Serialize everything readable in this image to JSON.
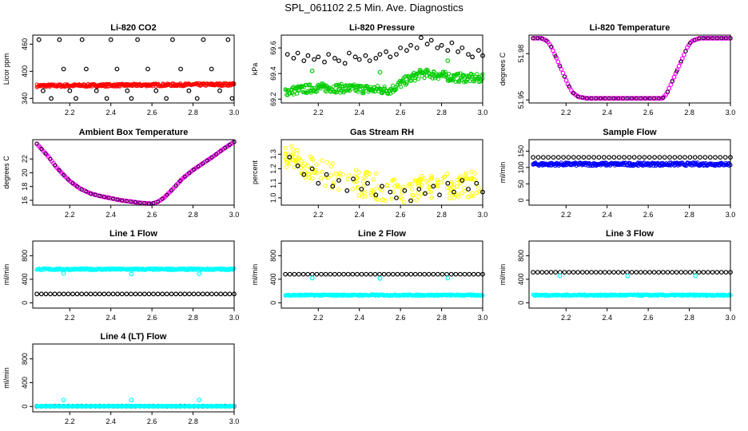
{
  "figure_title": "SPL_061102  2.5 Min. Ave. Diagnostics",
  "colors": {
    "black": "#000000",
    "red": "#ff0000",
    "green": "#00cc00",
    "magenta": "#ff00ff",
    "yellow": "#ffff00",
    "blue": "#0000ff",
    "cyan": "#00ffff"
  },
  "chart_data": [
    {
      "id": "co2",
      "type": "scatter",
      "title": "Li-820 CO2",
      "ylabel": "Licor ppm",
      "xlim": [
        2.02,
        3.0
      ],
      "ylim": [
        330,
        480
      ],
      "xticks": [
        2.2,
        2.4,
        2.6,
        2.8,
        3.0
      ],
      "yticks": [
        340,
        400,
        460
      ],
      "series": [
        {
          "kind": "band",
          "color": "#ff0000",
          "x": [
            2.04,
            3.0
          ],
          "y": [
            368,
            371
          ],
          "spread": 3
        },
        {
          "kind": "points",
          "color": "#000000",
          "x": [
            2.05,
            2.07,
            2.11,
            2.15,
            2.17,
            2.2,
            2.23,
            2.26,
            2.28,
            2.33,
            2.38,
            2.4,
            2.43,
            2.48,
            2.5,
            2.53,
            2.58,
            2.62,
            2.67,
            2.7,
            2.74,
            2.78,
            2.82,
            2.85,
            2.89,
            2.93,
            2.97,
            2.99
          ],
          "y": [
            470,
            357,
            340,
            470,
            405,
            357,
            340,
            470,
            405,
            357,
            340,
            470,
            405,
            357,
            340,
            470,
            405,
            357,
            340,
            470,
            405,
            357,
            340,
            470,
            405,
            357,
            470,
            340
          ]
        }
      ]
    },
    {
      "id": "pressure",
      "type": "scatter",
      "title": "Li-820 Pressure",
      "ylabel": "kPa",
      "xlim": [
        2.02,
        3.0
      ],
      "ylim": [
        69.17,
        69.7
      ],
      "xticks": [
        2.2,
        2.4,
        2.6,
        2.8,
        3.0
      ],
      "yticks": [
        69.2,
        69.4,
        69.6
      ],
      "series": [
        {
          "kind": "band",
          "color": "#00cc00",
          "x": [
            2.04,
            2.2,
            2.4,
            2.55,
            2.62,
            2.7,
            2.78,
            2.85,
            3.0
          ],
          "y": [
            69.26,
            69.29,
            69.28,
            69.27,
            69.34,
            69.4,
            69.39,
            69.37,
            69.36
          ],
          "spread": 0.035
        },
        {
          "kind": "points",
          "color": "#000000",
          "x": [
            2.05,
            2.08,
            2.1,
            2.13,
            2.15,
            2.18,
            2.2,
            2.23,
            2.25,
            2.28,
            2.3,
            2.33,
            2.35,
            2.38,
            2.4,
            2.43,
            2.45,
            2.48,
            2.5,
            2.53,
            2.55,
            2.58,
            2.6,
            2.63,
            2.65,
            2.68,
            2.7,
            2.73,
            2.75,
            2.78,
            2.8,
            2.83,
            2.85,
            2.88,
            2.9,
            2.93,
            2.95,
            2.98,
            3.0
          ],
          "y": [
            69.55,
            69.52,
            69.56,
            69.5,
            69.54,
            69.51,
            69.53,
            69.49,
            69.55,
            69.52,
            69.5,
            69.48,
            69.56,
            69.53,
            69.51,
            69.54,
            69.5,
            69.52,
            69.55,
            69.57,
            69.53,
            69.55,
            69.6,
            69.58,
            69.62,
            69.6,
            69.68,
            69.63,
            69.66,
            69.6,
            69.62,
            69.58,
            69.64,
            69.57,
            69.6,
            69.55,
            69.53,
            69.58,
            69.54
          ]
        },
        {
          "kind": "points",
          "color": "#00cc00",
          "x": [
            2.17,
            2.5,
            2.83
          ],
          "y": [
            69.42,
            69.41,
            69.5
          ]
        }
      ]
    },
    {
      "id": "temp",
      "type": "scatter",
      "title": "Li-820 Temperature",
      "ylabel": "degrees C",
      "xlim": [
        2.02,
        3.0
      ],
      "ylim": [
        51.948,
        51.992
      ],
      "xticks": [
        2.2,
        2.4,
        2.6,
        2.8,
        3.0
      ],
      "yticks": [
        51.95,
        51.98
      ],
      "series": [
        {
          "kind": "line_points",
          "color": "#ff00ff",
          "x": [
            2.04,
            2.08,
            2.11,
            2.13,
            2.15,
            2.17,
            2.19,
            2.21,
            2.23,
            2.26,
            2.3,
            2.4,
            2.5,
            2.6,
            2.67,
            2.69,
            2.71,
            2.73,
            2.75,
            2.77,
            2.79,
            2.81,
            2.85,
            2.9,
            3.0
          ],
          "y": [
            51.99,
            51.99,
            51.988,
            51.984,
            51.978,
            51.972,
            51.966,
            51.96,
            51.955,
            51.952,
            51.951,
            51.951,
            51.951,
            51.951,
            51.951,
            51.954,
            51.96,
            51.966,
            51.972,
            51.978,
            51.984,
            51.988,
            51.99,
            51.99,
            51.99
          ]
        }
      ]
    },
    {
      "id": "box",
      "type": "scatter",
      "title": "Ambient Box Temperature",
      "ylabel": "degrees C",
      "xlim": [
        2.02,
        3.0
      ],
      "ylim": [
        15.3,
        24.8
      ],
      "xticks": [
        2.2,
        2.4,
        2.6,
        2.8,
        3.0
      ],
      "yticks": [
        16,
        18,
        20,
        22
      ],
      "series": [
        {
          "kind": "line_points",
          "color": "#ff00ff",
          "x": [
            2.04,
            2.07,
            2.1,
            2.13,
            2.16,
            2.2,
            2.25,
            2.3,
            2.35,
            2.4,
            2.45,
            2.5,
            2.55,
            2.6,
            2.63,
            2.66,
            2.7,
            2.75,
            2.8,
            2.85,
            2.9,
            2.95,
            3.0
          ],
          "y": [
            24.2,
            23.2,
            22.2,
            21.0,
            20.0,
            18.8,
            17.7,
            17.0,
            16.6,
            16.3,
            16.0,
            15.8,
            15.6,
            15.5,
            15.8,
            16.4,
            17.6,
            19.2,
            20.4,
            21.4,
            22.4,
            23.5,
            24.5
          ]
        }
      ]
    },
    {
      "id": "rh",
      "type": "scatter",
      "title": "Gas Stream RH",
      "ylabel": "percent",
      "xlim": [
        2.02,
        3.0
      ],
      "ylim": [
        0.95,
        1.4
      ],
      "xticks": [
        2.2,
        2.4,
        2.6,
        2.8,
        3.0
      ],
      "yticks": [
        1.0,
        1.1,
        1.2,
        1.3
      ],
      "series": [
        {
          "kind": "cloud",
          "color": "#ffff00",
          "x": [
            2.04,
            2.2,
            2.4,
            2.6,
            2.8,
            3.0
          ],
          "y": [
            1.3,
            1.18,
            1.1,
            1.05,
            1.08,
            1.1
          ],
          "spread": 0.09
        },
        {
          "kind": "points",
          "color": "#000000",
          "x": [
            2.06,
            2.1,
            2.13,
            2.17,
            2.2,
            2.24,
            2.27,
            2.3,
            2.34,
            2.37,
            2.41,
            2.44,
            2.48,
            2.51,
            2.55,
            2.58,
            2.62,
            2.65,
            2.69,
            2.72,
            2.76,
            2.79,
            2.83,
            2.86,
            2.9,
            2.93,
            2.97,
            3.0
          ],
          "y": [
            1.28,
            1.22,
            1.16,
            1.2,
            1.1,
            1.16,
            1.08,
            1.12,
            1.05,
            1.13,
            1.06,
            1.1,
            1.02,
            1.08,
            1.04,
            1.0,
            1.05,
            0.98,
            1.06,
            1.03,
            1.08,
            1.02,
            1.1,
            1.04,
            1.12,
            1.06,
            1.1,
            1.04
          ]
        }
      ]
    },
    {
      "id": "sample",
      "type": "scatter",
      "title": "Sample Flow",
      "ylabel": "ml/min",
      "xlim": [
        2.02,
        3.0
      ],
      "ylim": [
        -15,
        185
      ],
      "xticks": [
        2.2,
        2.4,
        2.6,
        2.8,
        3.0
      ],
      "yticks": [
        0,
        50,
        100,
        150
      ],
      "series": [
        {
          "kind": "band",
          "color": "#0000ff",
          "x": [
            2.04,
            3.0
          ],
          "y": [
            110,
            110
          ],
          "spread": 5
        },
        {
          "kind": "dots",
          "color": "#000000",
          "x": [
            2.04,
            3.0
          ],
          "y": [
            131,
            131
          ],
          "n": 40
        }
      ]
    },
    {
      "id": "line1",
      "type": "scatter",
      "title": "Line 1 Flow",
      "ylabel": "ml/min",
      "xlim": [
        2.02,
        3.0
      ],
      "ylim": [
        -90,
        1050
      ],
      "xticks": [
        2.2,
        2.4,
        2.6,
        2.8,
        3.0
      ],
      "yticks": [
        0,
        400,
        800
      ],
      "series": [
        {
          "kind": "band",
          "color": "#00ffff",
          "x": [
            2.04,
            3.0
          ],
          "y": [
            570,
            570
          ],
          "spread": 15
        },
        {
          "kind": "dots",
          "color": "#000000",
          "x": [
            2.04,
            3.0
          ],
          "y": [
            150,
            150
          ],
          "n": 45
        },
        {
          "kind": "points",
          "color": "#00ffff",
          "x": [
            2.17,
            2.5,
            2.83
          ],
          "y": [
            500,
            490,
            495
          ]
        }
      ]
    },
    {
      "id": "line2",
      "type": "scatter",
      "title": "Line 2 Flow",
      "ylabel": "ml/min",
      "xlim": [
        2.02,
        3.0
      ],
      "ylim": [
        -90,
        1050
      ],
      "xticks": [
        2.2,
        2.4,
        2.6,
        2.8,
        3.0
      ],
      "yticks": [
        0,
        400,
        800
      ],
      "series": [
        {
          "kind": "band",
          "color": "#00ffff",
          "x": [
            2.04,
            3.0
          ],
          "y": [
            130,
            130
          ],
          "spread": 12
        },
        {
          "kind": "dots",
          "color": "#000000",
          "x": [
            2.04,
            3.0
          ],
          "y": [
            485,
            485
          ],
          "n": 45
        },
        {
          "kind": "points",
          "color": "#00ffff",
          "x": [
            2.17,
            2.5,
            2.83
          ],
          "y": [
            420,
            415,
            420
          ]
        }
      ]
    },
    {
      "id": "line3",
      "type": "scatter",
      "title": "Line 3 Flow",
      "ylabel": "ml/min",
      "xlim": [
        2.02,
        3.0
      ],
      "ylim": [
        -90,
        1050
      ],
      "xticks": [
        2.2,
        2.4,
        2.6,
        2.8,
        3.0
      ],
      "yticks": [
        0,
        400,
        800
      ],
      "series": [
        {
          "kind": "band",
          "color": "#00ffff",
          "x": [
            2.04,
            3.0
          ],
          "y": [
            130,
            130
          ],
          "spread": 12
        },
        {
          "kind": "dots",
          "color": "#000000",
          "x": [
            2.04,
            3.0
          ],
          "y": [
            520,
            520
          ],
          "n": 45
        },
        {
          "kind": "points",
          "color": "#00ffff",
          "x": [
            2.17,
            2.5,
            2.83
          ],
          "y": [
            460,
            455,
            460
          ]
        }
      ]
    },
    {
      "id": "line4",
      "type": "scatter",
      "title": "Line 4 (LT) Flow",
      "ylabel": "ml/min",
      "xlim": [
        2.02,
        3.0
      ],
      "ylim": [
        -90,
        1050
      ],
      "xticks": [
        2.2,
        2.4,
        2.6,
        2.8,
        3.0
      ],
      "yticks": [
        0,
        400,
        800
      ],
      "series": [
        {
          "kind": "dots",
          "color": "#000000",
          "x": [
            2.04,
            3.0
          ],
          "y": [
            5,
            5
          ],
          "n": 45
        },
        {
          "kind": "band",
          "color": "#00ffff",
          "x": [
            2.04,
            3.0
          ],
          "y": [
            5,
            5
          ],
          "spread": 6
        },
        {
          "kind": "points",
          "color": "#00ffff",
          "x": [
            2.17,
            2.5,
            2.83
          ],
          "y": [
            110,
            110,
            110
          ]
        }
      ]
    }
  ]
}
